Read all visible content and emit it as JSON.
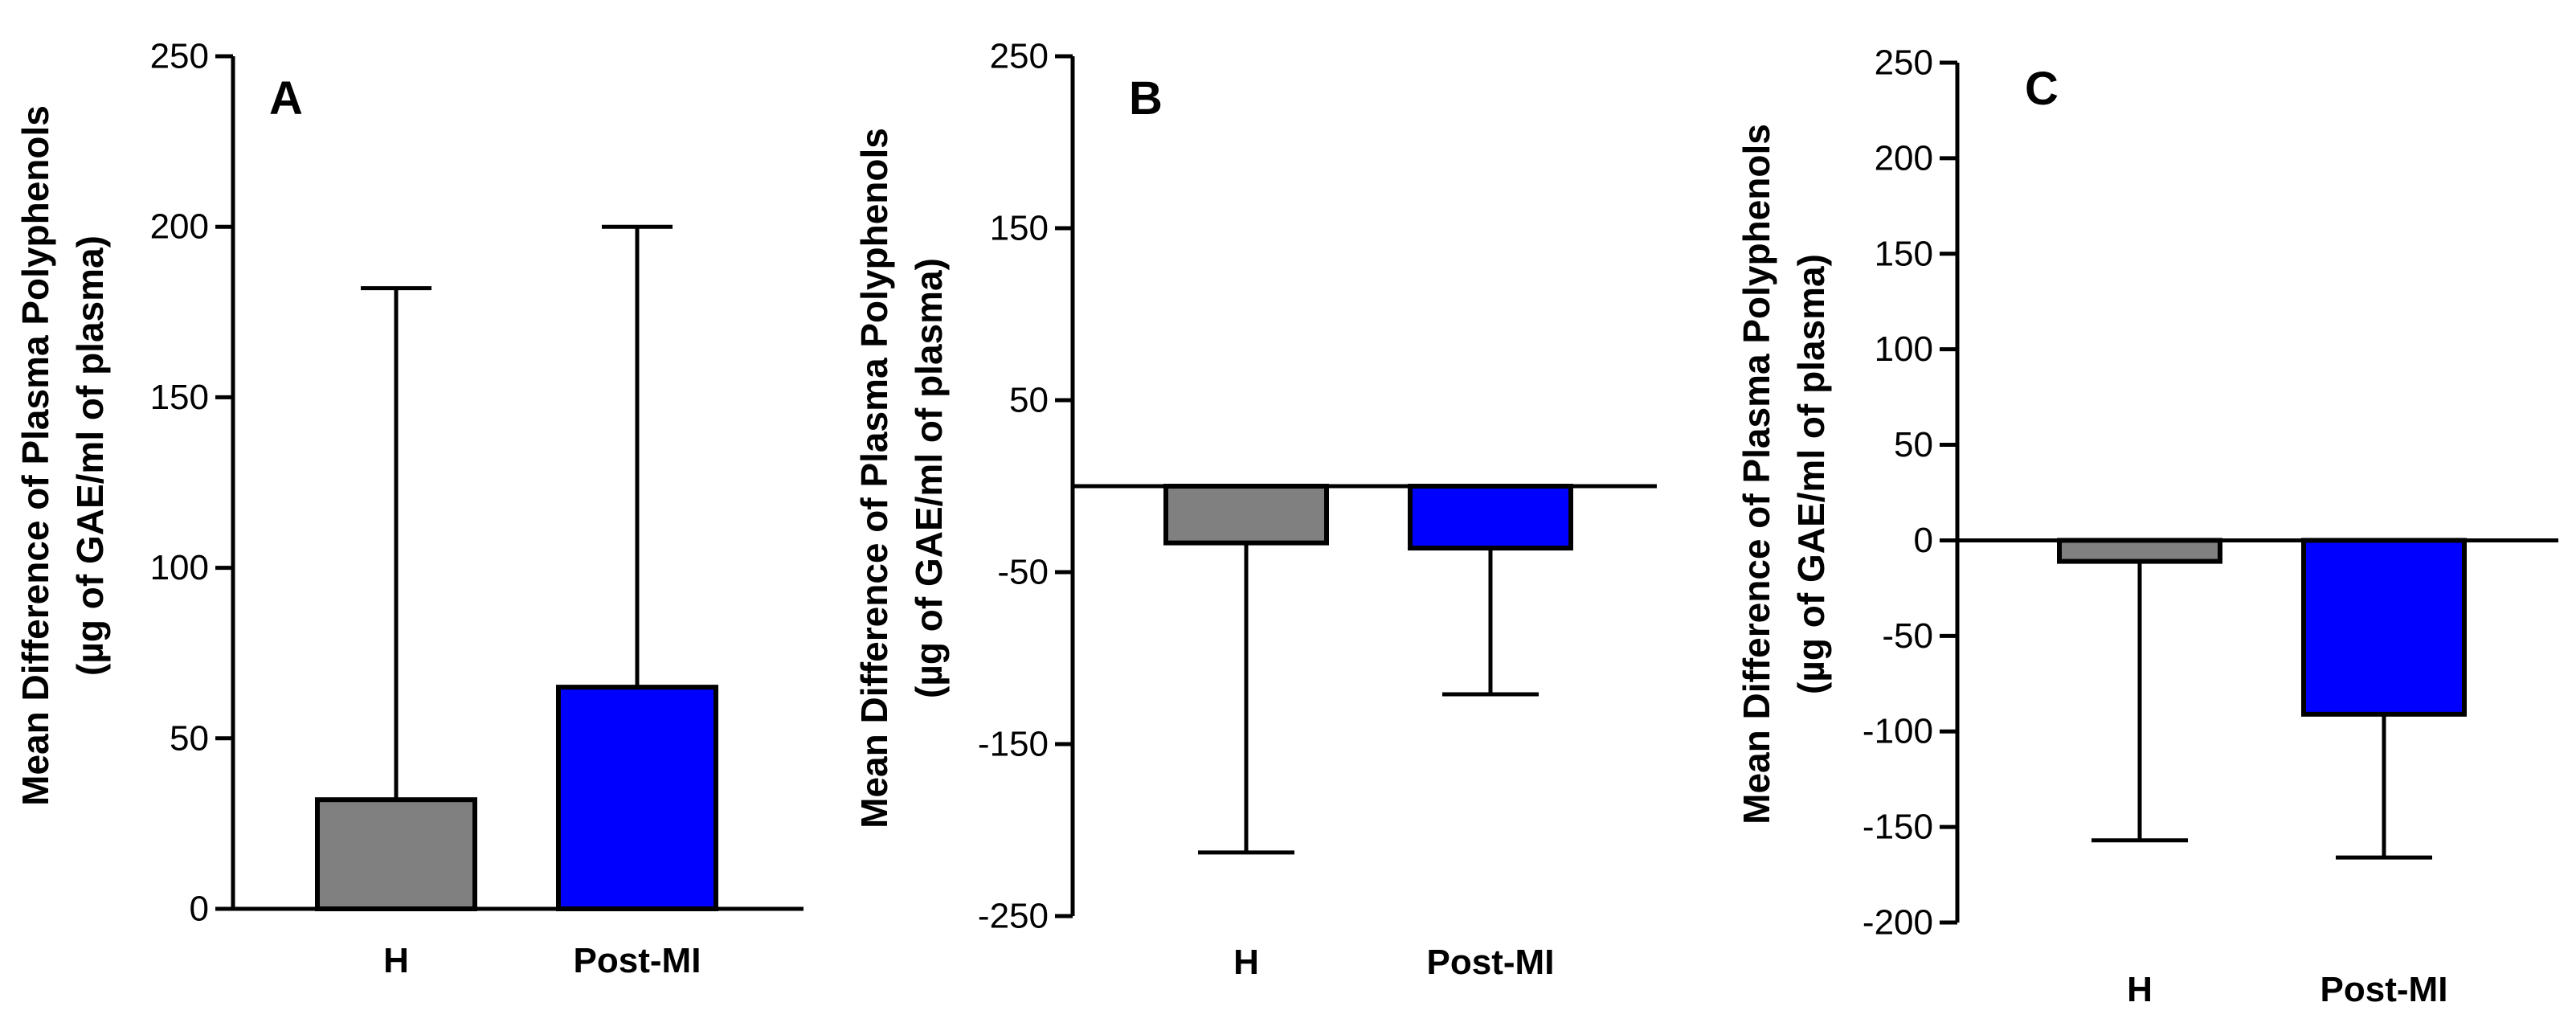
{
  "chart_data": [
    {
      "type": "bar",
      "panel_label": "A",
      "ylabel": "Mean Difference of Plasma Polyphenols",
      "ylabel_line2": "(µg of GAE/ml of plasma)",
      "categories": [
        "H",
        "Post-MI"
      ],
      "values": [
        32,
        65
      ],
      "error_bars": [
        150,
        135
      ],
      "error_direction": "up",
      "colors": [
        "#808080",
        "#0000ff"
      ],
      "ylim": [
        0,
        250
      ],
      "yticks": [
        0,
        50,
        100,
        150,
        200,
        250
      ],
      "grid": false,
      "legend": "none"
    },
    {
      "type": "bar",
      "panel_label": "B",
      "ylabel": "Mean Difference of Plasma Polyphenols",
      "ylabel_line2": "(µg of GAE/ml of plasma)",
      "categories": [
        "H",
        "Post-MI"
      ],
      "values": [
        -33,
        -36
      ],
      "error_bars": [
        180,
        85
      ],
      "error_direction": "down",
      "colors": [
        "#808080",
        "#0000ff"
      ],
      "ylim": [
        -250,
        250
      ],
      "yticks": [
        -250,
        -150,
        -50,
        50,
        150,
        250
      ],
      "grid": false,
      "legend": "none"
    },
    {
      "type": "bar",
      "panel_label": "C",
      "ylabel": "Mean Difference of Plasma Polyphenols",
      "ylabel_line2": "(µg of GAE/ml of plasma)",
      "categories": [
        "H",
        "Post-MI"
      ],
      "values": [
        -11,
        -91
      ],
      "error_bars": [
        146,
        75
      ],
      "error_direction": "down",
      "colors": [
        "#808080",
        "#0000ff"
      ],
      "ylim": [
        -200,
        250
      ],
      "yticks": [
        -200,
        -150,
        -100,
        -50,
        0,
        50,
        100,
        150,
        200,
        250
      ],
      "grid": false,
      "legend": "none"
    }
  ]
}
